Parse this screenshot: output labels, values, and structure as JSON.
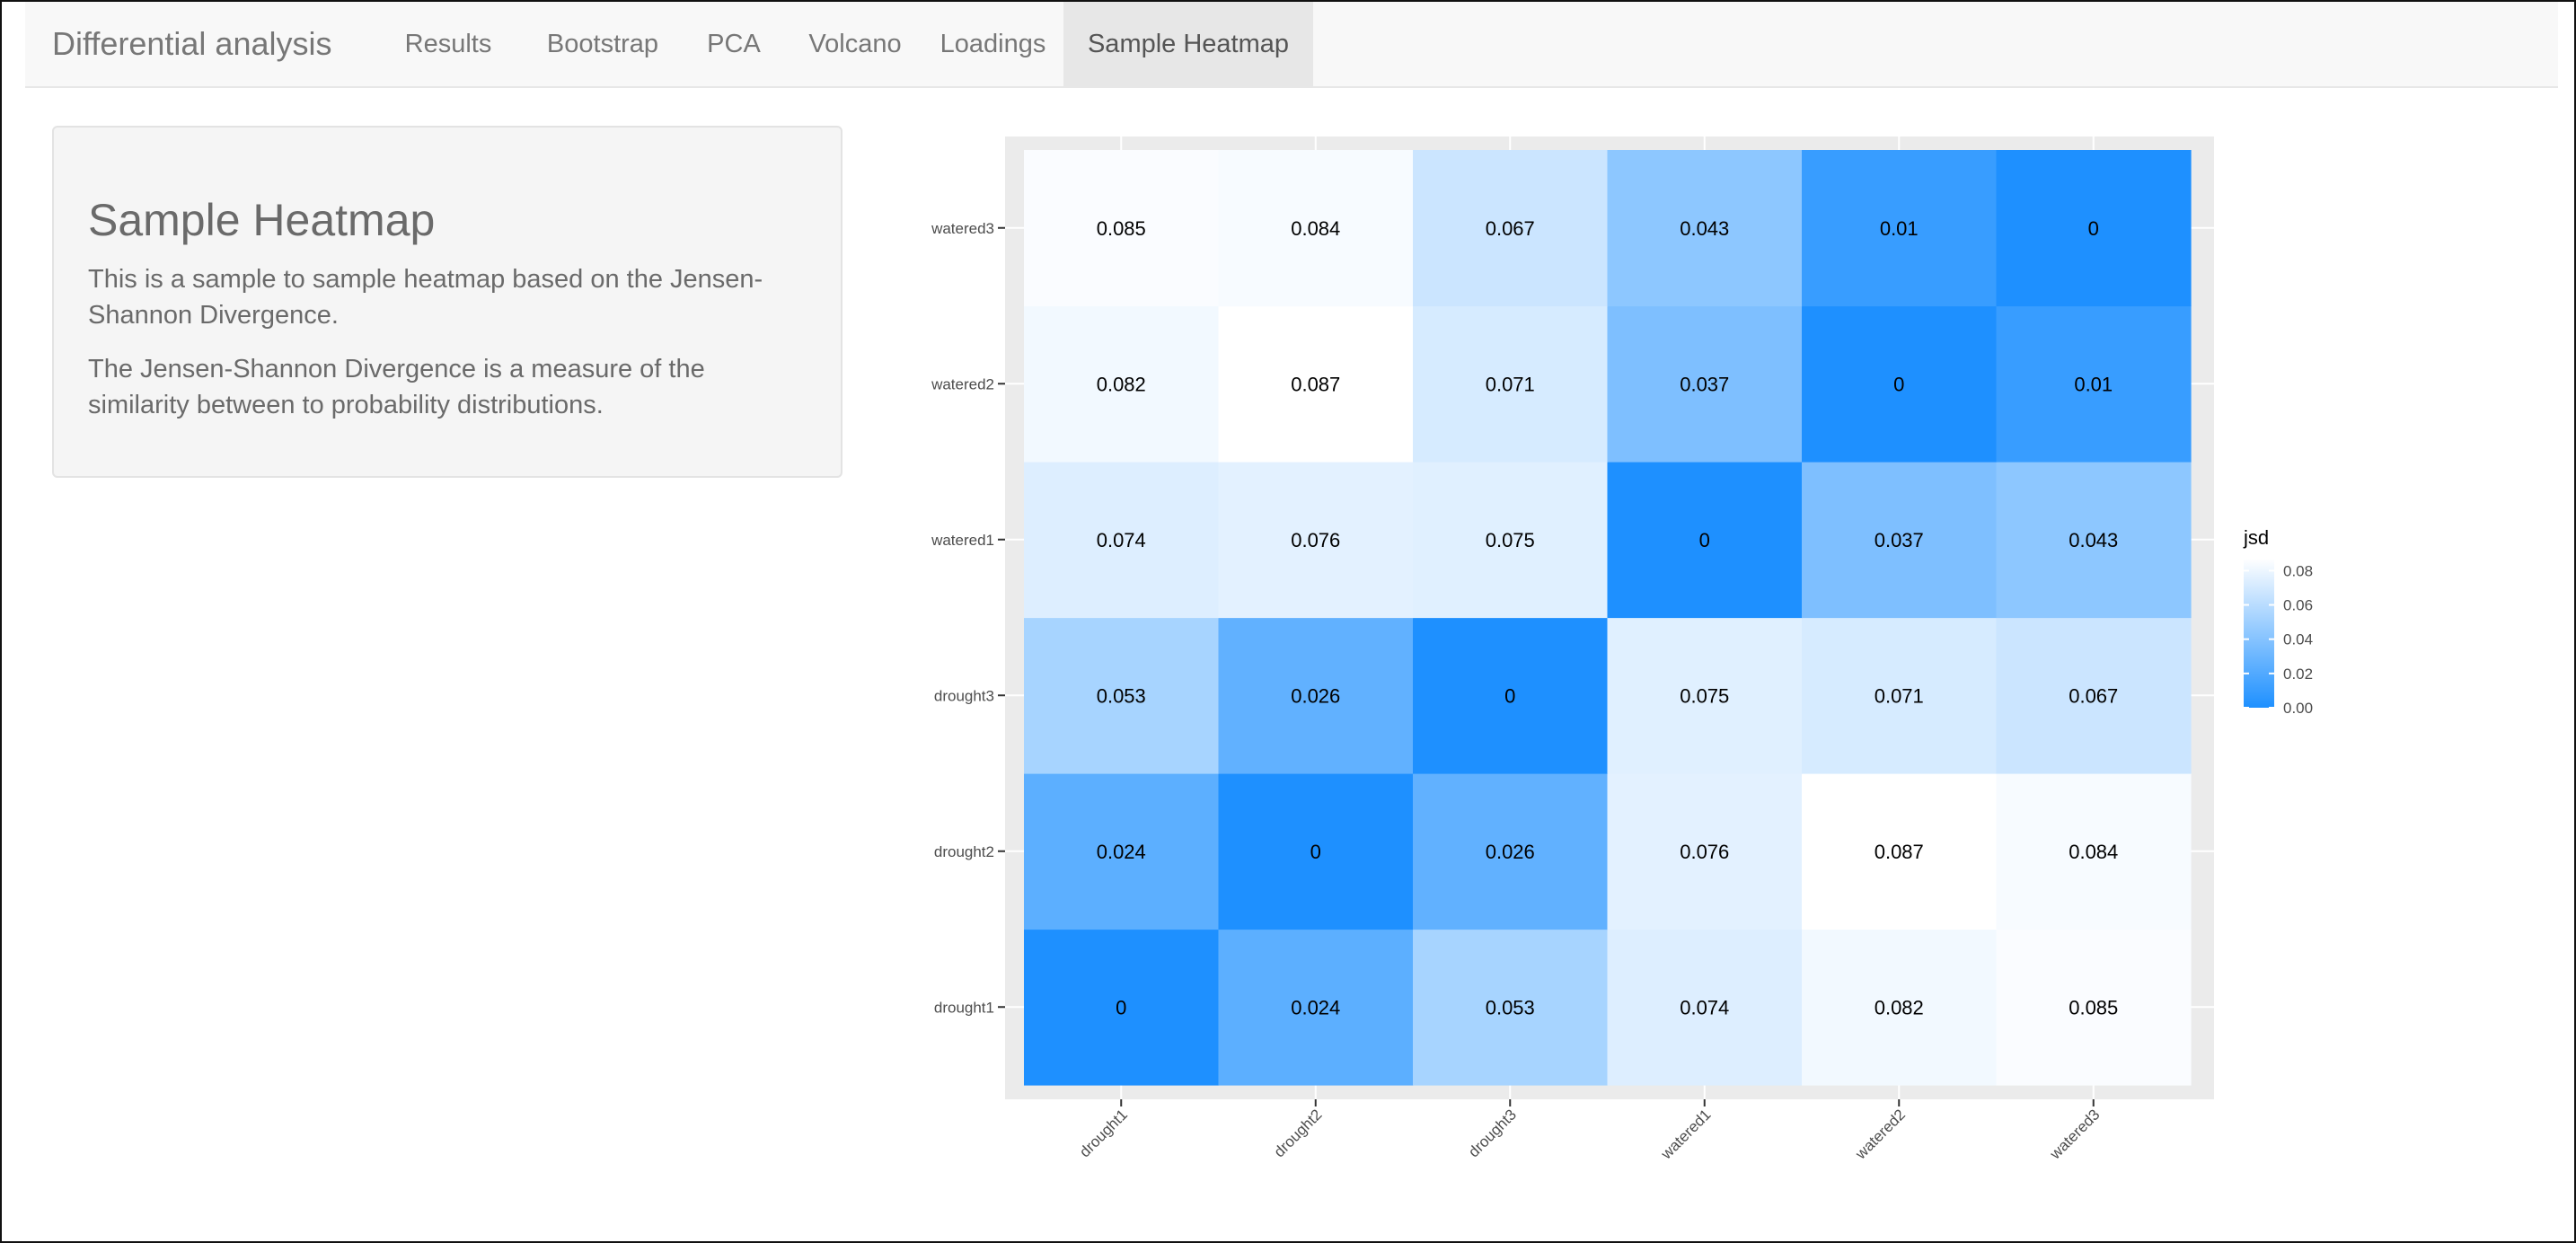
{
  "navbar": {
    "brand": "Differential analysis",
    "tabs": [
      {
        "label": "Results",
        "active": false
      },
      {
        "label": "Bootstrap",
        "active": false
      },
      {
        "label": "PCA",
        "active": false
      },
      {
        "label": "Volcano",
        "active": false
      },
      {
        "label": "Loadings",
        "active": false
      },
      {
        "label": "Sample Heatmap",
        "active": true
      }
    ]
  },
  "sidebar": {
    "title": "Sample Heatmap",
    "paragraphs": [
      "This is a sample to sample heatmap based on the Jensen-Shannon Divergence.",
      "The Jensen-Shannon Divergence is a measure of the similarity between to probability distributions."
    ]
  },
  "colors": {
    "low": "#1e90ff",
    "high": "#ffffff",
    "panel_bg": "#ebebeb",
    "grid": "#ffffff"
  },
  "chart_data": {
    "type": "heatmap",
    "title": "",
    "xlabel": "",
    "ylabel": "",
    "x_categories": [
      "drought1",
      "drought2",
      "drought3",
      "watered1",
      "watered2",
      "watered3"
    ],
    "y_categories": [
      "drought1",
      "drought2",
      "drought3",
      "watered1",
      "watered2",
      "watered3"
    ],
    "values": [
      [
        0,
        0.024,
        0.053,
        0.074,
        0.082,
        0.085
      ],
      [
        0.024,
        0,
        0.026,
        0.076,
        0.087,
        0.084
      ],
      [
        0.053,
        0.026,
        0,
        0.075,
        0.071,
        0.067
      ],
      [
        0.074,
        0.076,
        0.075,
        0,
        0.037,
        0.043
      ],
      [
        0.082,
        0.087,
        0.071,
        0.037,
        0,
        0.01
      ],
      [
        0.085,
        0.084,
        0.067,
        0.043,
        0.01,
        0
      ]
    ],
    "value_labels": [
      [
        "0",
        "0.024",
        "0.053",
        "0.074",
        "0.082",
        "0.085"
      ],
      [
        "0.024",
        "0",
        "0.026",
        "0.076",
        "0.087",
        "0.084"
      ],
      [
        "0.053",
        "0.026",
        "0",
        "0.075",
        "0.071",
        "0.067"
      ],
      [
        "0.074",
        "0.076",
        "0.075",
        "0",
        "0.037",
        "0.043"
      ],
      [
        "0.082",
        "0.087",
        "0.071",
        "0.037",
        "0",
        "0.01"
      ],
      [
        "0.085",
        "0.084",
        "0.067",
        "0.043",
        "0.01",
        "0"
      ]
    ],
    "color_range": [
      0,
      0.087
    ],
    "legend": {
      "title": "jsd",
      "ticks": [
        0.0,
        0.02,
        0.04,
        0.06,
        0.08
      ],
      "tick_labels": [
        "0.00",
        "0.02",
        "0.04",
        "0.06",
        "0.08"
      ],
      "position": "right"
    }
  }
}
